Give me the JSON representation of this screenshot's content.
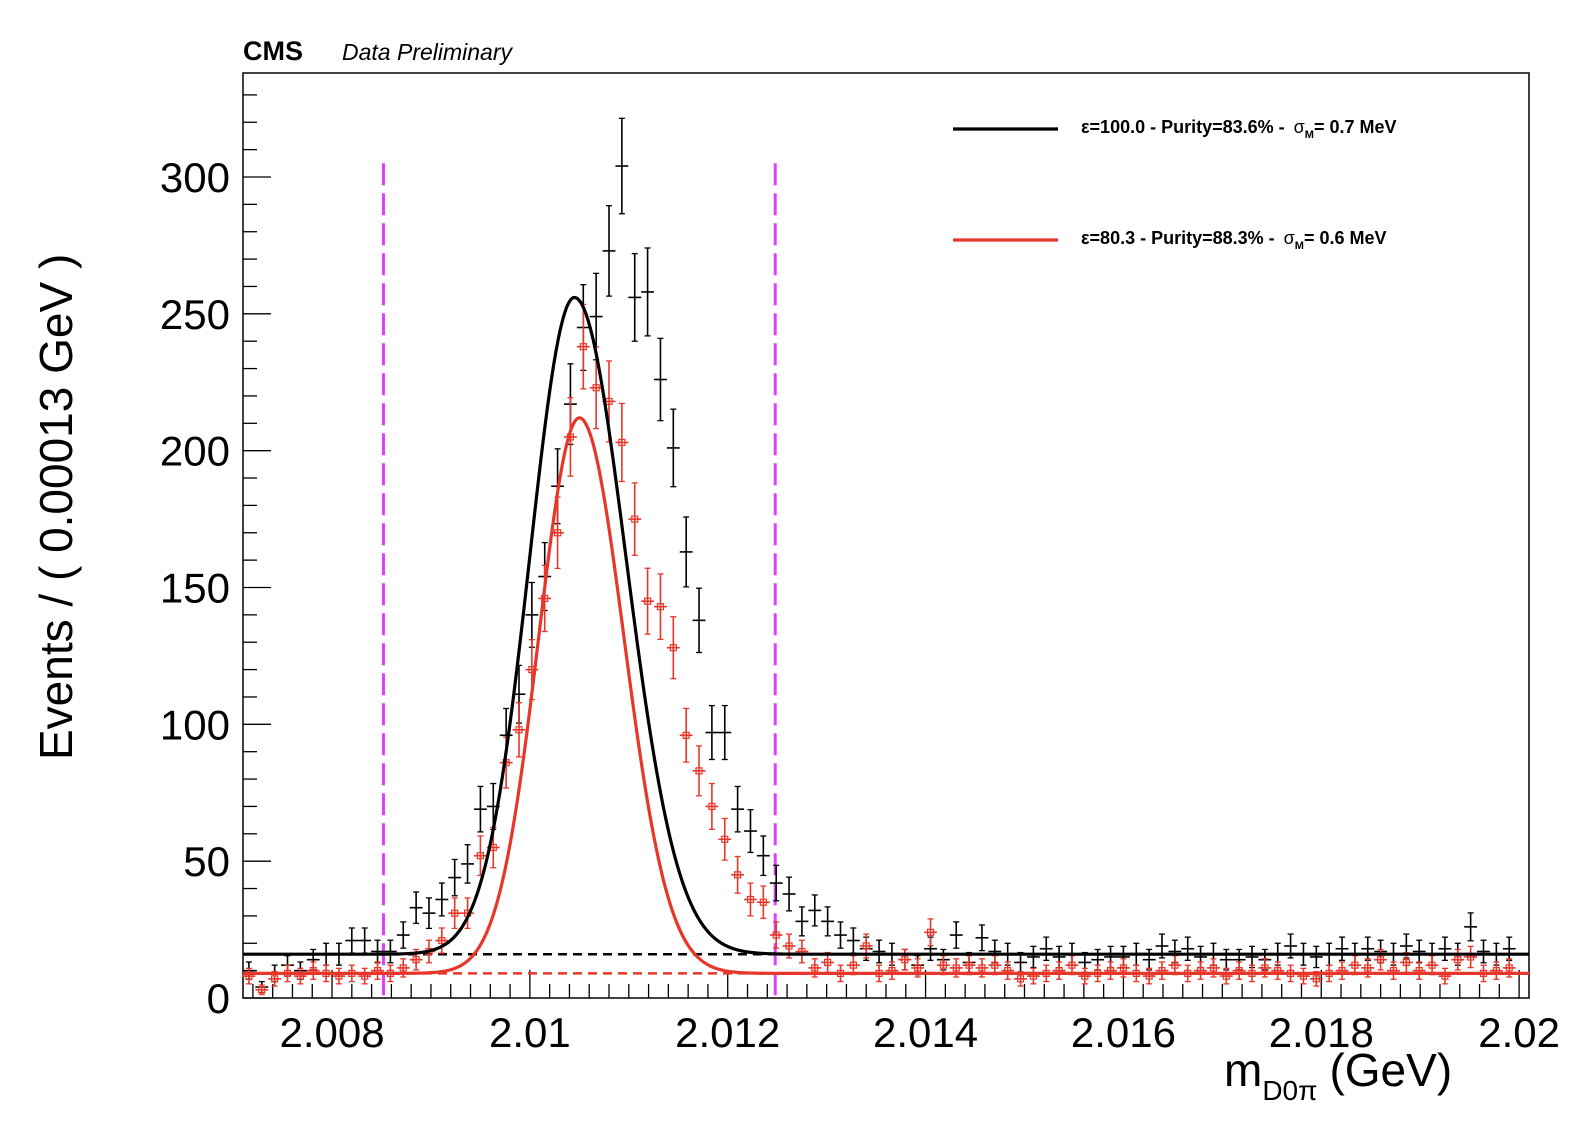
{
  "chart_data": {
    "type": "scatter",
    "experiment_label": "CMS",
    "status_label": "Data Preliminary",
    "ylabel": "Events / ( 0.00013 GeV )",
    "xlabel_main": "m",
    "xlabel_sub": "D0π",
    "xlabel_unit": "(GeV)",
    "xlim": [
      2.0071,
      2.0201
    ],
    "ylim": [
      0,
      338
    ],
    "x_ticks": [
      2.008,
      2.01,
      2.012,
      2.014,
      2.016,
      2.018,
      2.02
    ],
    "x_tick_labels": [
      "2.008",
      "2.01",
      "2.012",
      "2.014",
      "2.016",
      "2.018",
      "2.02"
    ],
    "y_ticks": [
      0,
      50,
      100,
      150,
      200,
      250,
      300
    ],
    "y_tick_labels": [
      "0",
      "50",
      "100",
      "150",
      "200",
      "250",
      "300"
    ],
    "bin_width": 0.00013,
    "vertical_markers": [
      2.00852,
      2.01248
    ],
    "legend": [
      {
        "prefix": "ε=100.0 - Purity=83.6% - ",
        "sym": "σ",
        "sub": "M",
        "suffix": "= 0.7 MeV",
        "color": "#000000"
      },
      {
        "prefix": "ε=80.3 - Purity=88.3% - ",
        "sym": "σ",
        "sub": "M",
        "suffix": "= 0.6 MeV",
        "color": "#e8362a"
      }
    ],
    "colors": {
      "black_series": "#000000",
      "red_series": "#e8362a",
      "marker_lines": "#e040fb"
    },
    "series": [
      {
        "name": "ε=100.0 - Purity=83.6% - σM= 0.7 MeV",
        "color": "#000000",
        "fit": {
          "mu": 2.01045,
          "sigma_left": 0.00045,
          "sigma_right": 0.00052,
          "peak": 240,
          "background": 16
        },
        "x": [
          2.00716,
          2.00729,
          2.00742,
          2.00755,
          2.00768,
          2.00781,
          2.00794,
          2.00807,
          2.0082,
          2.00833,
          2.00846,
          2.00859,
          2.00872,
          2.00885,
          2.00898,
          2.00911,
          2.00924,
          2.00937,
          2.0095,
          2.00963,
          2.00976,
          2.00989,
          2.01002,
          2.01015,
          2.01028,
          2.01041,
          2.01054,
          2.01067,
          2.0108,
          2.01093,
          2.01106,
          2.01119,
          2.01132,
          2.01145,
          2.01158,
          2.01171,
          2.01184,
          2.01197,
          2.0121,
          2.01223,
          2.01236,
          2.01249,
          2.01262,
          2.01275,
          2.01288,
          2.01301,
          2.01314,
          2.01327,
          2.0134,
          2.01353,
          2.01366,
          2.01379,
          2.01392,
          2.01405,
          2.01418,
          2.01431,
          2.01444,
          2.01457,
          2.0147,
          2.01483,
          2.01496,
          2.01509,
          2.01522,
          2.01535,
          2.01548,
          2.01561,
          2.01574,
          2.01587,
          2.016,
          2.01613,
          2.01626,
          2.01639,
          2.01652,
          2.01665,
          2.01678,
          2.01691,
          2.01704,
          2.01717,
          2.0173,
          2.01743,
          2.01756,
          2.01769,
          2.01782,
          2.01795,
          2.01808,
          2.01821,
          2.01834,
          2.01847,
          2.0186,
          2.01873,
          2.01886,
          2.01899,
          2.01912,
          2.01925,
          2.01938,
          2.01951,
          2.01964,
          2.01977,
          2.0199
        ],
        "y": [
          10,
          4,
          9,
          12,
          10,
          14,
          16,
          16,
          21,
          21,
          17,
          17,
          23,
          33,
          31,
          36,
          44,
          49,
          69,
          70,
          96,
          111,
          140,
          154,
          187,
          217,
          245,
          249,
          273,
          304,
          256,
          258,
          226,
          201,
          163,
          138,
          97,
          97,
          69,
          61,
          52,
          42,
          38,
          28,
          32,
          28,
          23,
          21,
          18,
          17,
          16,
          14,
          12,
          18,
          14,
          23,
          13,
          22,
          17,
          16,
          13,
          15,
          18,
          15,
          16,
          13,
          14,
          15,
          15,
          16,
          14,
          19,
          17,
          18,
          15,
          16,
          14,
          14,
          15,
          14,
          16,
          19,
          16,
          15,
          16,
          18,
          16,
          18,
          17,
          16,
          19,
          17,
          16,
          18,
          16,
          26,
          17,
          16,
          18
        ]
      },
      {
        "name": "ε=80.3 - Purity=88.3% - σM= 0.6 MeV",
        "color": "#e8362a",
        "fit": {
          "mu": 2.0105,
          "sigma_left": 0.00041,
          "sigma_right": 0.00045,
          "peak": 203,
          "background": 9
        },
        "x": [
          2.00716,
          2.00729,
          2.00742,
          2.00755,
          2.00768,
          2.00781,
          2.00794,
          2.00807,
          2.0082,
          2.00833,
          2.00846,
          2.00859,
          2.00872,
          2.00885,
          2.00898,
          2.00911,
          2.00924,
          2.00937,
          2.0095,
          2.00963,
          2.00976,
          2.00989,
          2.01002,
          2.01015,
          2.01028,
          2.01041,
          2.01054,
          2.01067,
          2.0108,
          2.01093,
          2.01106,
          2.01119,
          2.01132,
          2.01145,
          2.01158,
          2.01171,
          2.01184,
          2.01197,
          2.0121,
          2.01223,
          2.01236,
          2.01249,
          2.01262,
          2.01275,
          2.01288,
          2.01301,
          2.01314,
          2.01327,
          2.0134,
          2.01353,
          2.01366,
          2.01379,
          2.01392,
          2.01405,
          2.01418,
          2.01431,
          2.01444,
          2.01457,
          2.0147,
          2.01483,
          2.01496,
          2.01509,
          2.01522,
          2.01535,
          2.01548,
          2.01561,
          2.01574,
          2.01587,
          2.016,
          2.01613,
          2.01626,
          2.01639,
          2.01652,
          2.01665,
          2.01678,
          2.01691,
          2.01704,
          2.01717,
          2.0173,
          2.01743,
          2.01756,
          2.01769,
          2.01782,
          2.01795,
          2.01808,
          2.01821,
          2.01834,
          2.01847,
          2.0186,
          2.01873,
          2.01886,
          2.01899,
          2.01912,
          2.01925,
          2.01938,
          2.01951,
          2.01964,
          2.01977,
          2.0199
        ],
        "y": [
          8,
          3,
          7,
          9,
          8,
          10,
          9,
          8,
          9,
          8,
          10,
          9,
          11,
          14,
          17,
          21,
          31,
          31,
          52,
          55,
          86,
          98,
          120,
          146,
          170,
          205,
          238,
          223,
          218,
          203,
          175,
          145,
          143,
          128,
          96,
          83,
          70,
          58,
          45,
          36,
          35,
          23,
          19,
          17,
          11,
          13,
          9,
          12,
          19,
          9,
          10,
          14,
          11,
          24,
          12,
          11,
          12,
          11,
          12,
          10,
          7,
          8,
          9,
          10,
          12,
          8,
          9,
          10,
          11,
          9,
          8,
          10,
          12,
          9,
          10,
          11,
          8,
          10,
          9,
          11,
          10,
          9,
          8,
          7,
          9,
          10,
          12,
          11,
          14,
          10,
          13,
          10,
          12,
          8,
          14,
          15,
          9,
          10,
          11
        ]
      }
    ]
  }
}
